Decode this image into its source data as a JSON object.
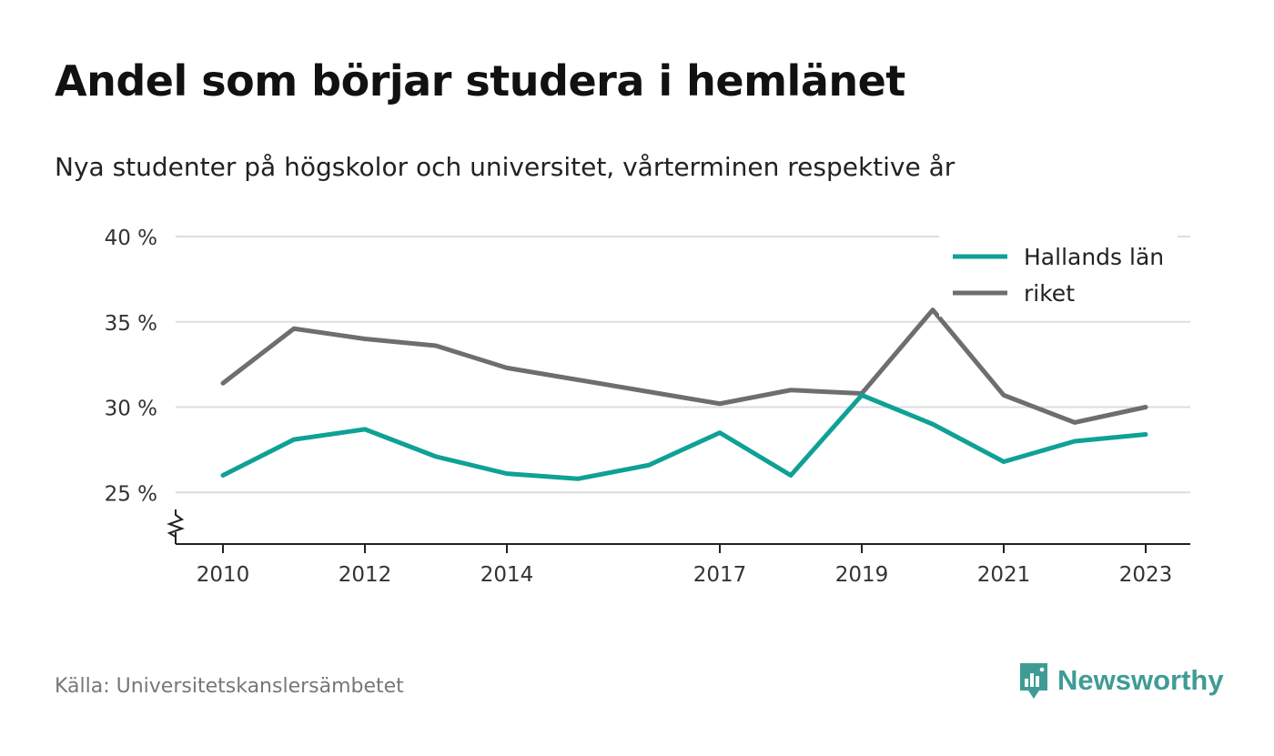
{
  "title": "Andel som börjar studera i hemlänet",
  "subtitle": "Nya studenter på högskolor och universitet, vårterminen respektive år",
  "source": "Källa: Universitetskanslersämbetet",
  "brand": {
    "name": "Newsworthy",
    "icon": "newsworthy-logo-icon",
    "color": "#3f9c95"
  },
  "chart_data": {
    "type": "line",
    "title": "Andel som börjar studera i hemlänet",
    "subtitle": "Nya studenter på högskolor och universitet, vårterminen respektive år",
    "x": [
      2010,
      2011,
      2012,
      2013,
      2014,
      2015,
      2016,
      2017,
      2018,
      2019,
      2020,
      2021,
      2022,
      2023
    ],
    "x_ticks": [
      2010,
      2012,
      2014,
      2017,
      2019,
      2021,
      2023
    ],
    "y_ticks": [
      {
        "value": 25,
        "label": "25 %"
      },
      {
        "value": 30,
        "label": "30 %"
      },
      {
        "value": 35,
        "label": "35 %"
      },
      {
        "value": 40,
        "label": "40 %"
      }
    ],
    "ylim": [
      22,
      40
    ],
    "y_axis_break": true,
    "grid": true,
    "legend_position": "top-right",
    "series": [
      {
        "name": "Hallands län",
        "color": "#0fa195",
        "values": [
          26.0,
          28.1,
          28.7,
          27.1,
          26.1,
          25.8,
          26.6,
          28.5,
          26.0,
          30.7,
          29.0,
          26.8,
          28.0,
          28.4
        ]
      },
      {
        "name": "riket",
        "color": "#6e6d72",
        "values": [
          31.4,
          34.6,
          34.0,
          33.6,
          32.3,
          31.6,
          30.9,
          30.2,
          31.0,
          30.8,
          35.7,
          30.7,
          29.1,
          30.0
        ]
      }
    ]
  }
}
